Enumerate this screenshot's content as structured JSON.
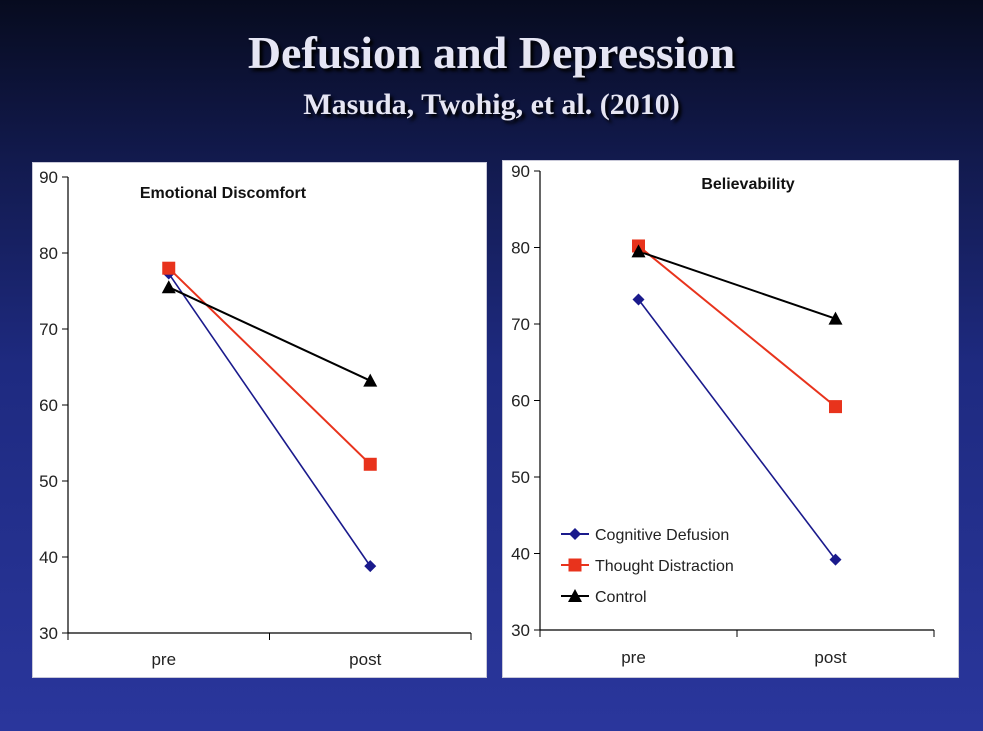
{
  "slide": {
    "title": "Defusion and Depression",
    "subtitle": "Masuda, Twohig, et al. (2010)"
  },
  "colors": {
    "cognitive_defusion": "#1a1a8c",
    "thought_distraction": "#e8331c",
    "control": "#000000"
  },
  "chart_data": [
    {
      "type": "line",
      "title": "Emotional Discomfort",
      "categories": [
        "pre",
        "post"
      ],
      "ylim": [
        30,
        90
      ],
      "yticks": [
        "30",
        "40",
        "50",
        "60",
        "70",
        "80",
        "90"
      ],
      "series": [
        {
          "name": "Cognitive Defusion",
          "marker": "diamond",
          "values": [
            77.3,
            38.8
          ]
        },
        {
          "name": "Thought Distraction",
          "marker": "square",
          "values": [
            78,
            52.2
          ]
        },
        {
          "name": "Control",
          "marker": "triangle",
          "values": [
            75.5,
            63.2
          ]
        }
      ],
      "legend": "none"
    },
    {
      "type": "line",
      "title": "Believability",
      "categories": [
        "pre",
        "post"
      ],
      "ylim": [
        30,
        90
      ],
      "yticks": [
        "30",
        "40",
        "50",
        "60",
        "70",
        "80",
        "90"
      ],
      "series": [
        {
          "name": "Cognitive Defusion",
          "marker": "diamond",
          "values": [
            73.2,
            39.2
          ]
        },
        {
          "name": "Thought Distraction",
          "marker": "square",
          "values": [
            80.2,
            59.2
          ]
        },
        {
          "name": "Control",
          "marker": "triangle",
          "values": [
            79.5,
            70.7
          ]
        }
      ],
      "legend": "bottom-left"
    }
  ]
}
